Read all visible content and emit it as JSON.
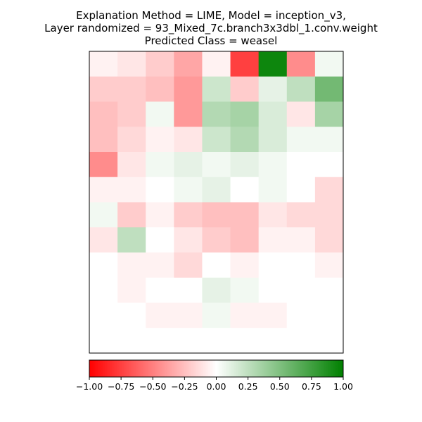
{
  "chart_data": {
    "type": "heatmap",
    "title_lines": [
      "Explanation Method = LIME, Model = inception_v3,",
      "Layer randomized = 93_Mixed_7c.branch3x3dbl_1.conv.weight",
      "Predicted Class = weasel"
    ],
    "xlabel": "",
    "ylabel": "",
    "grid": false,
    "colorbar": {
      "orientation": "horizontal",
      "placement": "bottom",
      "range": [
        -1.0,
        1.0
      ],
      "ticks": [
        -1.0,
        -0.75,
        -0.5,
        -0.25,
        0.0,
        0.25,
        0.5,
        0.75,
        1.0
      ],
      "tick_labels": [
        "−1.00",
        "−0.75",
        "−0.50",
        "−0.25",
        "0.00",
        "0.25",
        "0.50",
        "0.75",
        "1.00"
      ],
      "colors": {
        "negative": "#ff0000",
        "neutral": "#ffffff",
        "positive": "#008000"
      }
    },
    "heatmap_grid_rows": 12,
    "heatmap_grid_cols": 9,
    "values": [
      [
        -0.05,
        -0.1,
        -0.2,
        -0.35,
        -0.05,
        -0.75,
        0.95,
        -0.45,
        0.05
      ],
      [
        -0.2,
        -0.2,
        -0.25,
        -0.4,
        0.2,
        -0.2,
        0.1,
        0.25,
        0.55
      ],
      [
        -0.25,
        -0.2,
        0.05,
        -0.4,
        0.3,
        0.35,
        0.15,
        -0.1,
        0.35
      ],
      [
        -0.25,
        -0.15,
        -0.05,
        -0.1,
        0.2,
        0.3,
        0.15,
        0.05,
        0.05
      ],
      [
        -0.45,
        -0.1,
        0.05,
        0.1,
        0.05,
        0.1,
        0.05,
        0.0,
        0.0
      ],
      [
        -0.05,
        -0.05,
        0.0,
        0.05,
        0.1,
        0.0,
        0.05,
        0.0,
        -0.15
      ],
      [
        0.05,
        -0.2,
        -0.05,
        -0.2,
        -0.25,
        -0.25,
        -0.1,
        -0.15,
        -0.15
      ],
      [
        -0.1,
        0.25,
        0.0,
        -0.1,
        -0.2,
        -0.25,
        -0.05,
        -0.05,
        -0.15
      ],
      [
        0.0,
        -0.05,
        -0.05,
        -0.15,
        0.0,
        -0.05,
        0.0,
        0.0,
        -0.05
      ],
      [
        0.0,
        -0.05,
        0.0,
        0.0,
        0.1,
        0.05,
        0.0,
        0.0,
        0.0
      ],
      [
        0.0,
        0.0,
        -0.05,
        -0.05,
        0.05,
        -0.05,
        -0.05,
        0.0,
        0.0
      ],
      [
        0.0,
        0.0,
        0.0,
        0.0,
        0.0,
        0.0,
        0.0,
        0.0,
        0.0
      ]
    ]
  }
}
